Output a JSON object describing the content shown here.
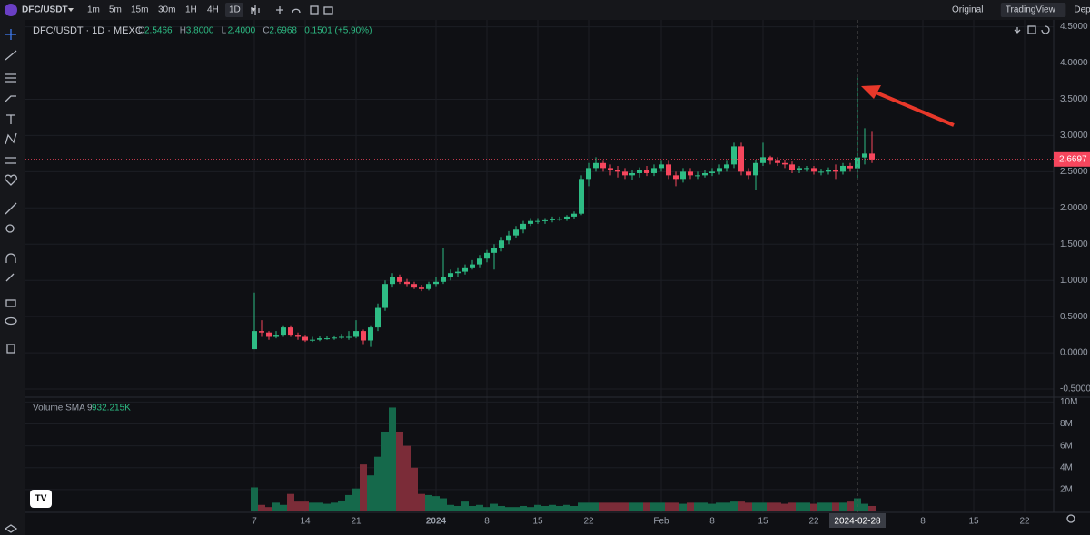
{
  "toolbar": {
    "symbol": "DFC/USDT",
    "intervals": [
      "1m",
      "5m",
      "15m",
      "30m",
      "1H",
      "4H",
      "1D"
    ],
    "active": "1D",
    "views": [
      "Original",
      "TradingView",
      "Depth"
    ],
    "active_view": "TradingView"
  },
  "legend": {
    "title": "DFC/USDT · 1D · MEXC",
    "ohlc": [
      {
        "k": "O",
        "v": "2.5466"
      },
      {
        "k": "H",
        "v": "3.8000"
      },
      {
        "k": "L",
        "v": "2.4000"
      },
      {
        "k": "C",
        "v": "2.6968"
      }
    ],
    "change": "0.1501 (+5.90%)",
    "volume_title": "Volume SMA 9",
    "volume_value": "932.215K"
  },
  "chart_data": [
    {
      "type": "candlestick",
      "up_color": "#2ebd85",
      "down_color": "#f6465d",
      "x": [
        "2023-12-07",
        "2023-12-08",
        "2023-12-09",
        "2023-12-10",
        "2023-12-11",
        "2023-12-12",
        "2023-12-13",
        "2023-12-14",
        "2023-12-15",
        "2023-12-16",
        "2023-12-17",
        "2023-12-18",
        "2023-12-19",
        "2023-12-20",
        "2023-12-21",
        "2023-12-22",
        "2023-12-23",
        "2023-12-24",
        "2023-12-25",
        "2023-12-26",
        "2023-12-27",
        "2023-12-28",
        "2023-12-29",
        "2023-12-30",
        "2023-12-31",
        "2024-01-01",
        "2024-01-02",
        "2024-01-03",
        "2024-01-04",
        "2024-01-05",
        "2024-01-06",
        "2024-01-07",
        "2024-01-08",
        "2024-01-09",
        "2024-01-10",
        "2024-01-11",
        "2024-01-12",
        "2024-01-13",
        "2024-01-14",
        "2024-01-15",
        "2024-01-16",
        "2024-01-17",
        "2024-01-18",
        "2024-01-19",
        "2024-01-20",
        "2024-01-21",
        "2024-01-22",
        "2024-01-23",
        "2024-01-24",
        "2024-01-25",
        "2024-01-26",
        "2024-01-27",
        "2024-01-28",
        "2024-01-29",
        "2024-01-30",
        "2024-01-31",
        "2024-02-01",
        "2024-02-02",
        "2024-02-03",
        "2024-02-04",
        "2024-02-05",
        "2024-02-06",
        "2024-02-07",
        "2024-02-08",
        "2024-02-09",
        "2024-02-10",
        "2024-02-11",
        "2024-02-12",
        "2024-02-13",
        "2024-02-14",
        "2024-02-15",
        "2024-02-16",
        "2024-02-17",
        "2024-02-18",
        "2024-02-19",
        "2024-02-20",
        "2024-02-21",
        "2024-02-22",
        "2024-02-23",
        "2024-02-24",
        "2024-02-25",
        "2024-02-26",
        "2024-02-27",
        "2024-02-28",
        "2024-02-29",
        "2024-03-01"
      ],
      "open": [
        0.05,
        0.3,
        0.28,
        0.22,
        0.25,
        0.35,
        0.25,
        0.22,
        0.17,
        0.18,
        0.2,
        0.2,
        0.21,
        0.22,
        0.22,
        0.3,
        0.17,
        0.35,
        0.62,
        0.95,
        1.05,
        0.98,
        0.95,
        0.9,
        0.88,
        0.95,
        0.98,
        1.05,
        1.1,
        1.12,
        1.18,
        1.22,
        1.3,
        1.38,
        1.45,
        1.55,
        1.62,
        1.7,
        1.78,
        1.82,
        1.82,
        1.83,
        1.85,
        1.85,
        1.88,
        1.92,
        2.4,
        2.55,
        2.62,
        2.55,
        2.52,
        2.5,
        2.45,
        2.48,
        2.52,
        2.48,
        2.55,
        2.6,
        2.45,
        2.4,
        2.5,
        2.45,
        2.45,
        2.48,
        2.5,
        2.55,
        2.6,
        2.85,
        2.5,
        2.45,
        2.62,
        2.7,
        2.65,
        2.62,
        2.6,
        2.52,
        2.55,
        2.55,
        2.5,
        2.5,
        2.52,
        2.5,
        2.58,
        2.5466,
        2.6968,
        2.75
      ],
      "high": [
        0.83,
        0.45,
        0.3,
        0.3,
        0.38,
        0.38,
        0.28,
        0.25,
        0.22,
        0.23,
        0.23,
        0.24,
        0.26,
        0.3,
        0.45,
        0.32,
        0.38,
        0.68,
        1.0,
        1.1,
        1.08,
        1.02,
        0.98,
        0.94,
        0.98,
        1.05,
        1.45,
        1.15,
        1.18,
        1.22,
        1.28,
        1.35,
        1.42,
        1.5,
        1.6,
        1.68,
        1.75,
        1.82,
        1.86,
        1.86,
        1.86,
        1.88,
        1.88,
        1.9,
        1.95,
        2.45,
        2.62,
        2.7,
        2.65,
        2.6,
        2.58,
        2.55,
        2.52,
        2.56,
        2.58,
        2.6,
        2.65,
        2.65,
        2.5,
        2.55,
        2.55,
        2.5,
        2.52,
        2.55,
        2.6,
        2.65,
        2.9,
        2.9,
        2.55,
        2.66,
        2.9,
        2.72,
        2.7,
        2.66,
        2.64,
        2.58,
        2.58,
        2.58,
        2.54,
        2.56,
        2.6,
        2.62,
        2.62,
        3.8,
        3.1,
        3.05
      ],
      "low": [
        0.05,
        0.22,
        0.18,
        0.2,
        0.22,
        0.22,
        0.18,
        0.15,
        0.15,
        0.16,
        0.18,
        0.18,
        0.19,
        0.18,
        0.2,
        0.12,
        0.08,
        0.3,
        0.58,
        0.9,
        0.95,
        0.92,
        0.88,
        0.85,
        0.86,
        0.92,
        0.95,
        1.0,
        1.05,
        1.08,
        1.15,
        1.18,
        1.25,
        1.15,
        1.4,
        1.5,
        1.58,
        1.65,
        1.75,
        1.78,
        1.78,
        1.8,
        1.82,
        1.82,
        1.85,
        1.9,
        2.3,
        2.5,
        2.5,
        2.45,
        2.42,
        2.4,
        2.38,
        2.42,
        2.44,
        2.44,
        2.5,
        2.4,
        2.3,
        2.35,
        2.4,
        2.4,
        2.42,
        2.44,
        2.46,
        2.5,
        2.55,
        2.45,
        2.4,
        2.25,
        2.58,
        2.6,
        2.58,
        2.55,
        2.48,
        2.48,
        2.5,
        2.46,
        2.45,
        2.46,
        2.4,
        2.46,
        2.5,
        2.4,
        2.6,
        2.62
      ],
      "close": [
        0.3,
        0.28,
        0.22,
        0.25,
        0.35,
        0.25,
        0.22,
        0.17,
        0.18,
        0.2,
        0.2,
        0.21,
        0.22,
        0.22,
        0.3,
        0.17,
        0.35,
        0.62,
        0.95,
        1.05,
        0.98,
        0.95,
        0.9,
        0.88,
        0.95,
        0.98,
        1.05,
        1.1,
        1.12,
        1.18,
        1.22,
        1.3,
        1.38,
        1.45,
        1.55,
        1.62,
        1.7,
        1.78,
        1.82,
        1.82,
        1.83,
        1.85,
        1.85,
        1.88,
        1.92,
        2.4,
        2.55,
        2.62,
        2.55,
        2.52,
        2.5,
        2.45,
        2.48,
        2.52,
        2.48,
        2.55,
        2.6,
        2.45,
        2.4,
        2.5,
        2.45,
        2.45,
        2.48,
        2.5,
        2.55,
        2.6,
        2.85,
        2.5,
        2.45,
        2.62,
        2.7,
        2.65,
        2.62,
        2.6,
        2.52,
        2.55,
        2.55,
        2.5,
        2.5,
        2.52,
        2.5,
        2.58,
        2.5466,
        2.6968,
        2.75,
        2.6697
      ],
      "ylim": [
        -0.6,
        4.52
      ],
      "yticks": [
        {
          "value": 4.5,
          "label": "4.5000"
        },
        {
          "value": 4,
          "label": "4.0000"
        },
        {
          "value": 3.5,
          "label": "3.5000"
        },
        {
          "value": 3,
          "label": "3.0000"
        },
        {
          "value": 2.5,
          "label": "2.5000"
        },
        {
          "value": 2,
          "label": "2.0000"
        },
        {
          "value": 1.5,
          "label": "1.5000"
        },
        {
          "value": 1,
          "label": "1.0000"
        },
        {
          "value": 0.5,
          "label": "0.5000"
        },
        {
          "value": 0,
          "label": "0.0000"
        },
        {
          "value": -0.5,
          "label": "-0.5000"
        }
      ],
      "last_price": 2.6697,
      "grid": true
    },
    {
      "type": "volume",
      "up_color": "#15694b",
      "down_color": "#7b2c38",
      "values": [
        2.2,
        0.6,
        0.4,
        0.8,
        0.6,
        1.6,
        0.9,
        0.9,
        0.8,
        0.8,
        0.7,
        0.8,
        1.0,
        1.5,
        2.1,
        4.3,
        3.3,
        5.0,
        7.3,
        9.5,
        7.3,
        6.0,
        4.0,
        1.6,
        1.5,
        1.4,
        1.2,
        0.6,
        0.5,
        0.9,
        0.5,
        0.6,
        0.4,
        0.7,
        0.5,
        0.4,
        0.4,
        0.5,
        0.4,
        0.6,
        0.5,
        0.6,
        0.5,
        0.6,
        0.5,
        0.8,
        0.8,
        0.8,
        0.8,
        0.8,
        0.8,
        0.8,
        0.8,
        0.8,
        0.8,
        0.8,
        0.8,
        0.8,
        0.8,
        0.7,
        0.8,
        0.8,
        0.8,
        0.7,
        0.8,
        0.8,
        0.9,
        0.9,
        0.8,
        0.8,
        0.8,
        0.8,
        0.8,
        0.7,
        0.8,
        0.8,
        0.8,
        0.7,
        0.8,
        0.8,
        0.8,
        0.8,
        0.9,
        1.2,
        0.7,
        0.5
      ],
      "ylim": [
        0,
        10.2
      ],
      "yticks": [
        {
          "value": 10,
          "label": "10M"
        },
        {
          "value": 8,
          "label": "8M"
        },
        {
          "value": 6,
          "label": "6M"
        },
        {
          "value": 4,
          "label": "4M"
        },
        {
          "value": 2,
          "label": "2M"
        }
      ]
    }
  ],
  "xticks": [
    {
      "value": "2023-12-07",
      "label": "7"
    },
    {
      "value": "2023-12-14",
      "label": "14"
    },
    {
      "value": "2023-12-21",
      "label": "21"
    },
    {
      "value": "2024-01-01",
      "label": "2024"
    },
    {
      "value": "2024-01-08",
      "label": "8"
    },
    {
      "value": "2024-01-15",
      "label": "15"
    },
    {
      "value": "2024-01-22",
      "label": "22"
    },
    {
      "value": "2024-02-01",
      "label": "Feb"
    },
    {
      "value": "2024-02-08",
      "label": "8"
    },
    {
      "value": "2024-02-15",
      "label": "15"
    },
    {
      "value": "2024-02-22",
      "label": "22"
    },
    {
      "value": "2024-03-08",
      "label": "8"
    },
    {
      "value": "2024-03-15",
      "label": "15"
    },
    {
      "value": "2024-03-22",
      "label": "22"
    }
  ],
  "crosshair": "2024-02-28"
}
